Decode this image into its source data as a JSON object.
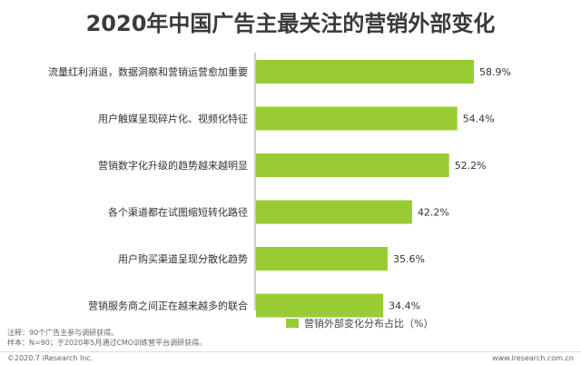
{
  "title": "2020年中国广告主最关注的营销外部变化",
  "colors": {
    "bar": "#99cc33",
    "axis": "#999999",
    "text": "#333333"
  },
  "chart_data": {
    "type": "bar",
    "orientation": "horizontal",
    "categories": [
      "流量红利消退，数据洞察和营销运营愈加重要",
      "用户触媒呈现碎片化、视频化特征",
      "营销数字化升级的趋势越来越明显",
      "各个渠道都在试图缩短转化路径",
      "用户购买渠道呈现分散化趋势",
      "营销服务商之间正在越来越多的联合"
    ],
    "series": [
      {
        "name": "营销外部变化分布占比（%）",
        "values": [
          58.9,
          54.4,
          52.2,
          42.2,
          35.6,
          34.4
        ],
        "labels": [
          "58.9%",
          "54.4%",
          "52.2%",
          "42.2%",
          "35.6%",
          "34.4%"
        ]
      }
    ],
    "xlim": [
      0,
      58.9
    ],
    "legend_position": "bottom-right",
    "grid": false
  },
  "legend": {
    "label": "营销外部变化分布占比（%）"
  },
  "notes": {
    "line1": "注释：90个广告主参与调研获得。",
    "line2": "样本：N=90；于2020年5月通过CMO训练营平台调研获得。"
  },
  "footer": {
    "copyright": "©2020.7 iResearch Inc.",
    "website": "www.iresearch.com.cn"
  }
}
